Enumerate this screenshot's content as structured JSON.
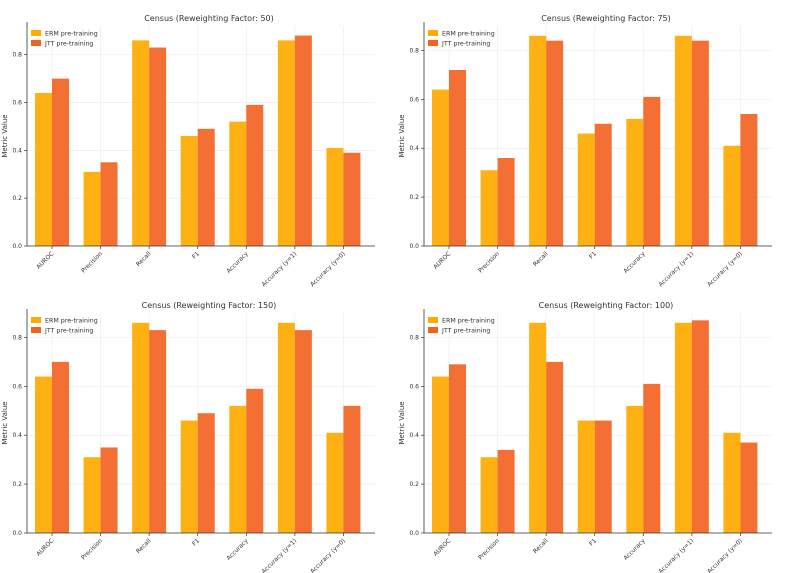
{
  "colors": {
    "erm": "#FFAA00",
    "jtt": "#F26322"
  },
  "chart_data": [
    {
      "type": "bar",
      "title": "Census (Reweighting Factor: 50)",
      "ylabel": "Metric Value",
      "categories": [
        "AUROC",
        "Precision",
        "Recall",
        "F1",
        "Accuracy",
        "Accuracy (y=1)",
        "Accuracy (y=0)"
      ],
      "series": [
        {
          "name": "ERM pre-training",
          "values": [
            0.64,
            0.31,
            0.86,
            0.46,
            0.52,
            0.86,
            0.41
          ]
        },
        {
          "name": "JTT pre-training",
          "values": [
            0.7,
            0.35,
            0.83,
            0.49,
            0.59,
            0.88,
            0.39
          ]
        }
      ],
      "ylim": [
        0,
        0.92
      ],
      "yticks": [
        "0.0",
        "0.2",
        "0.4",
        "0.6",
        "0.8"
      ],
      "legend": "top-left",
      "grid": true
    },
    {
      "type": "bar",
      "title": "Census (Reweighting Factor: 75)",
      "ylabel": "Metric Value",
      "categories": [
        "AUROC",
        "Precision",
        "Recall",
        "F1",
        "Accuracy",
        "Accuracy (y=1)",
        "Accuracy (y=0)"
      ],
      "series": [
        {
          "name": "ERM pre-training",
          "values": [
            0.64,
            0.31,
            0.86,
            0.46,
            0.52,
            0.86,
            0.41
          ]
        },
        {
          "name": "JTT pre-training",
          "values": [
            0.72,
            0.36,
            0.84,
            0.5,
            0.61,
            0.84,
            0.54
          ]
        }
      ],
      "ylim": [
        0,
        0.9
      ],
      "yticks": [
        "0.0",
        "0.2",
        "0.4",
        "0.6",
        "0.8"
      ],
      "legend": "top-left",
      "grid": true
    },
    {
      "type": "bar",
      "title": "Census (Reweighting Factor: 150)",
      "ylabel": "Metric Value",
      "categories": [
        "AUROC",
        "Precision",
        "Recall",
        "F1",
        "Accuracy",
        "Accuracy (y=1)",
        "Accuracy (y=0)"
      ],
      "series": [
        {
          "name": "ERM pre-training",
          "values": [
            0.64,
            0.31,
            0.86,
            0.46,
            0.52,
            0.86,
            0.41
          ]
        },
        {
          "name": "JTT pre-training",
          "values": [
            0.7,
            0.35,
            0.83,
            0.49,
            0.59,
            0.83,
            0.52
          ]
        }
      ],
      "ylim": [
        0,
        0.9
      ],
      "yticks": [
        "0.0",
        "0.2",
        "0.4",
        "0.6",
        "0.8"
      ],
      "legend": "top-left",
      "grid": true
    },
    {
      "type": "bar",
      "title": "Census (Reweighting Factor: 100)",
      "ylabel": "Metric Value",
      "categories": [
        "AUROC",
        "Precision",
        "Recall",
        "F1",
        "Accuracy",
        "Accuracy (y=1)",
        "Accuracy (y=0)"
      ],
      "series": [
        {
          "name": "ERM pre-training",
          "values": [
            0.64,
            0.31,
            0.86,
            0.46,
            0.52,
            0.86,
            0.41
          ]
        },
        {
          "name": "JTT pre-training",
          "values": [
            0.69,
            0.34,
            0.7,
            0.46,
            0.61,
            0.87,
            0.37
          ]
        }
      ],
      "ylim": [
        0,
        0.9
      ],
      "yticks": [
        "0.0",
        "0.2",
        "0.4",
        "0.6",
        "0.8"
      ],
      "legend": "top-left",
      "grid": true
    }
  ]
}
